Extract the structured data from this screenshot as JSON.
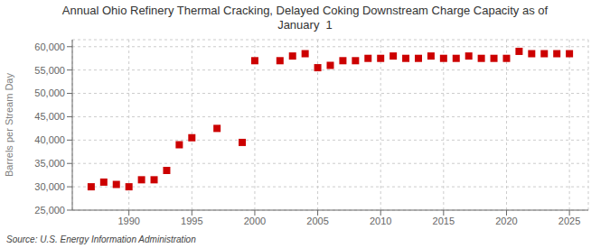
{
  "chart_data": {
    "type": "scatter",
    "title": "Annual Ohio Refinery Thermal Cracking, Delayed Coking Downstream Charge Capacity as of\nJanuary  1",
    "y_label": "Barrels per Stream Day",
    "source": "Source: U.S. Energy Information Administration",
    "x": [
      1987,
      1988,
      1989,
      1990,
      1991,
      1992,
      1993,
      1994,
      1995,
      1997,
      1999,
      2000,
      2002,
      2003,
      2004,
      2005,
      2006,
      2007,
      2008,
      2009,
      2010,
      2011,
      2012,
      2013,
      2014,
      2015,
      2016,
      2017,
      2018,
      2019,
      2020,
      2021,
      2022,
      2023,
      2024,
      2025
    ],
    "values": [
      30000,
      31000,
      30500,
      30000,
      31500,
      31500,
      33500,
      39000,
      40500,
      42500,
      39500,
      57000,
      57000,
      58000,
      58500,
      55500,
      56000,
      57000,
      57000,
      57500,
      57500,
      58000,
      57500,
      57500,
      58000,
      57500,
      57500,
      58000,
      57500,
      57500,
      57500,
      59000,
      58500,
      58500,
      58500,
      58500
    ],
    "color": "#cc0000",
    "marker": "square",
    "grid": true,
    "xlim": [
      1985.5,
      2026.5
    ],
    "xticks": [
      1990,
      1995,
      2000,
      2005,
      2010,
      2015,
      2020,
      2025
    ],
    "ylim": [
      25000,
      61500
    ],
    "yticks": [
      {
        "value": 25000,
        "label": "25,000"
      },
      {
        "value": 30000,
        "label": "30,000"
      },
      {
        "value": 35000,
        "label": "35,000"
      },
      {
        "value": 40000,
        "label": "40,000"
      },
      {
        "value": 45000,
        "label": "45,000"
      },
      {
        "value": 50000,
        "label": "50,000"
      },
      {
        "value": 55000,
        "label": "55,000"
      },
      {
        "value": 60000,
        "label": "60,000"
      }
    ]
  }
}
